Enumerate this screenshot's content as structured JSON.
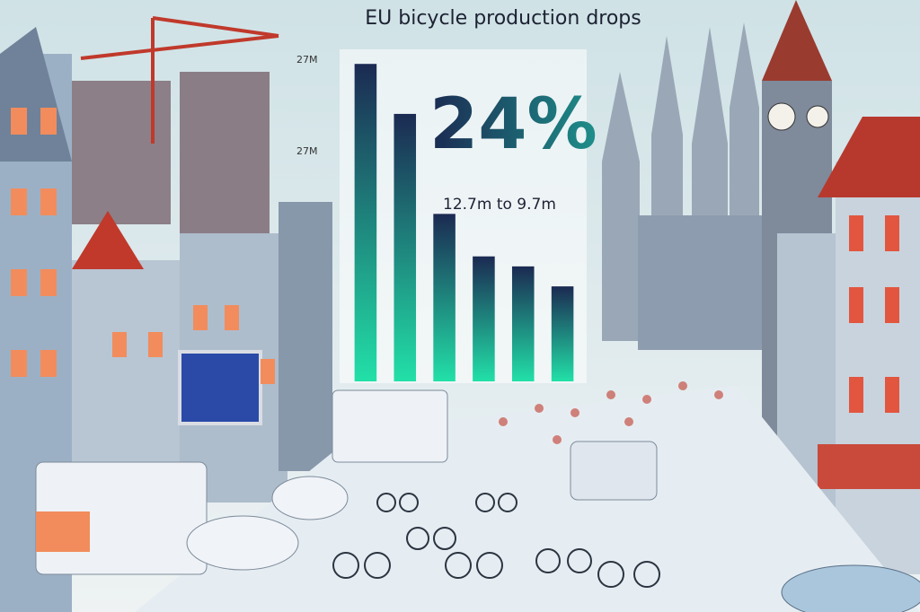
{
  "chart_data": {
    "type": "bar",
    "title": "EU bicycle production drops",
    "headline": "24%",
    "subtitle": "12.7m to 9.7m",
    "axis_labels": [
      "27M",
      "27M"
    ],
    "categories": [
      null,
      null,
      null,
      null,
      null,
      null
    ],
    "values": [
      12.7,
      10.7,
      6.7,
      5.0,
      4.6,
      3.8
    ],
    "ylim": [
      0,
      14
    ],
    "colors": [
      "#1b2a52",
      "#22e0a8"
    ]
  }
}
